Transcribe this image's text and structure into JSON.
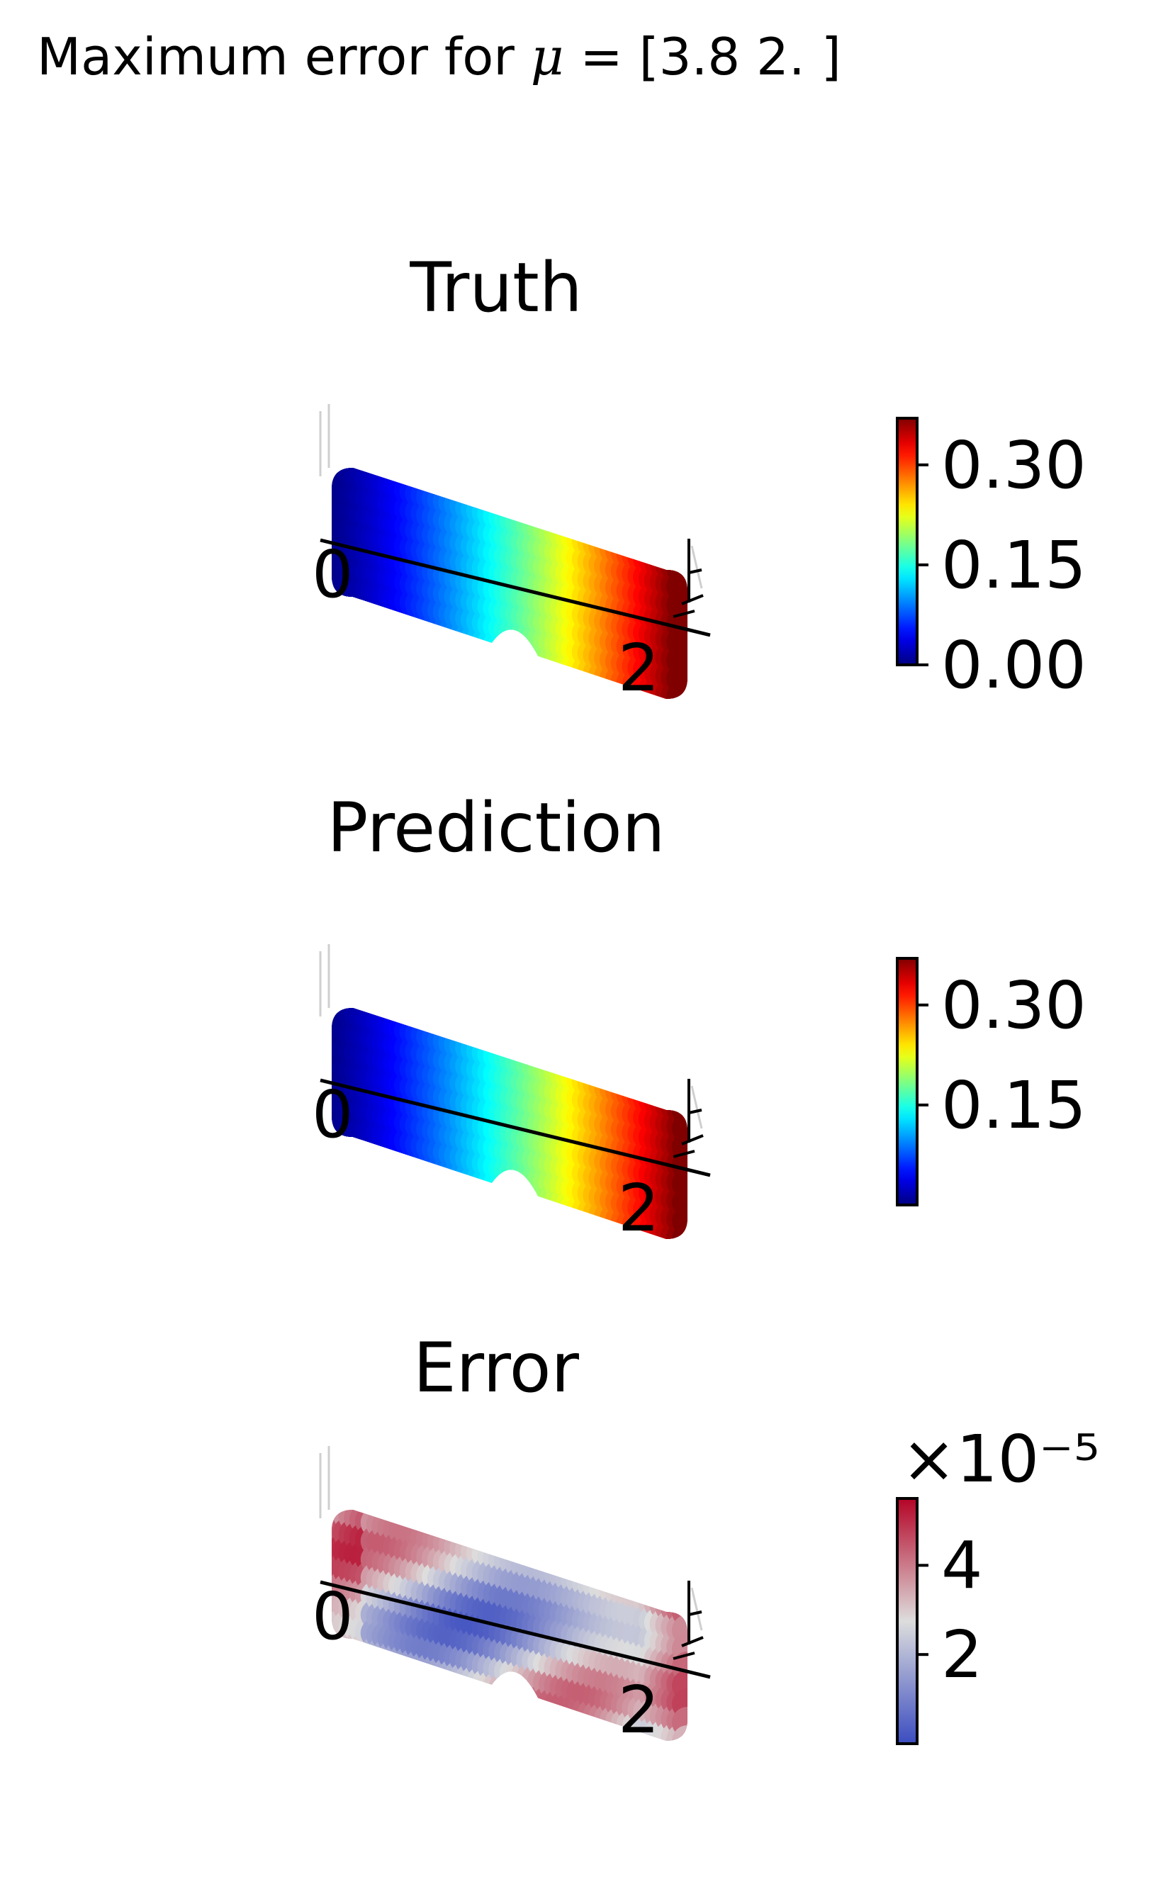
{
  "suptitle": {
    "prefix": "Maximum error for ",
    "symbol": "μ",
    "suffix": " = [3.8 2. ]"
  },
  "chart_data": [
    {
      "type": "scatter",
      "title": "Truth",
      "axis_ticks": {
        "x": [
          "0",
          "2"
        ]
      },
      "colormap": "jet",
      "colorbar": {
        "ticks": [
          "0.00",
          "0.15",
          "0.30"
        ],
        "range": [
          0.0,
          0.37
        ],
        "offset_label": ""
      },
      "field": "increases left to right from 0.00 to about 0.37"
    },
    {
      "type": "scatter",
      "title": "Prediction",
      "axis_ticks": {
        "x": [
          "0",
          "2"
        ]
      },
      "colormap": "jet",
      "colorbar": {
        "ticks": [
          "0.15",
          "0.30"
        ],
        "range": [
          0.0,
          0.37
        ],
        "offset_label": ""
      },
      "field": "increases left to right, up to about 0.37"
    },
    {
      "type": "scatter",
      "title": "Error",
      "axis_ticks": {
        "x": [
          "0",
          "2"
        ]
      },
      "colormap": "coolwarm",
      "colorbar": {
        "ticks": [
          "2",
          "4"
        ],
        "range": [
          0.0,
          5.5
        ],
        "offset_label": "×10⁻⁵"
      },
      "field": "small errors, maximum near right end"
    }
  ]
}
